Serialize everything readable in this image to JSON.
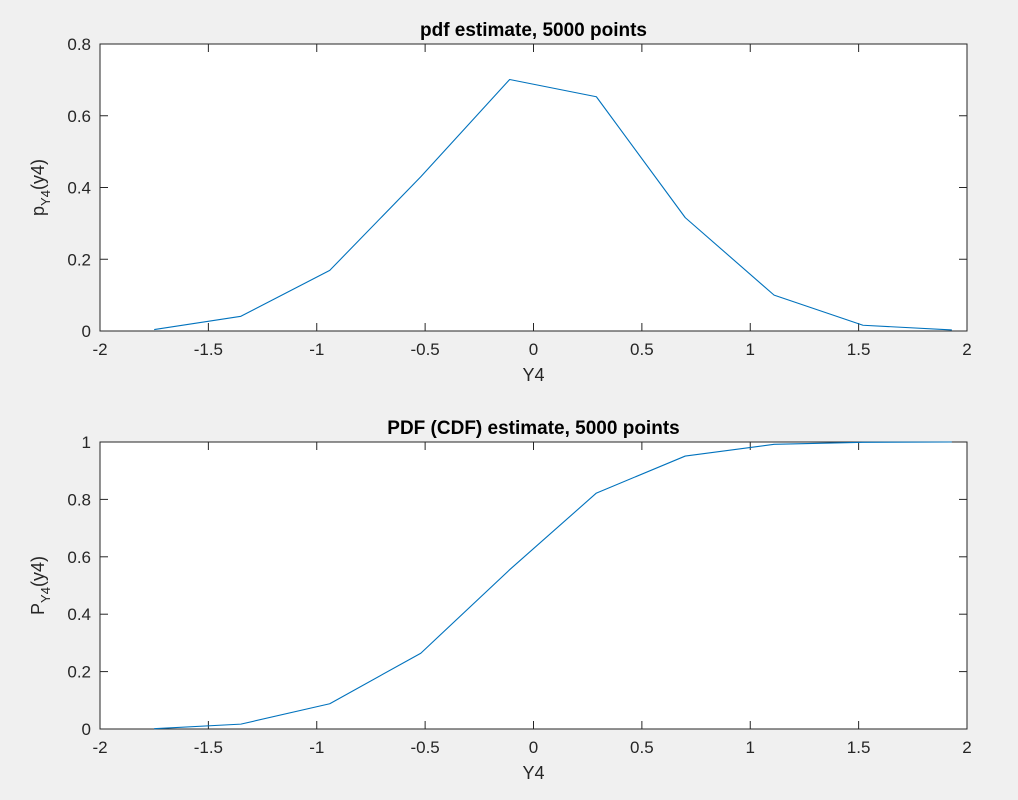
{
  "chart_data": [
    {
      "type": "line",
      "title": "pdf estimate, 5000 points",
      "xlabel": "Y4",
      "ylabel": {
        "main": "p",
        "sub": "Y4",
        "rest": "(y4)"
      },
      "xlim": [
        -2,
        2
      ],
      "ylim": [
        0,
        0.8
      ],
      "xticks": [
        -2,
        -1.5,
        -1,
        -0.5,
        0,
        0.5,
        1,
        1.5,
        2
      ],
      "xtick_labels": [
        "-2",
        "-1.5",
        "-1",
        "-0.5",
        "0",
        "0.5",
        "1",
        "1.5",
        "2"
      ],
      "yticks": [
        0,
        0.2,
        0.4,
        0.6,
        0.8
      ],
      "ytick_labels": [
        "0",
        "0.2",
        "0.4",
        "0.6",
        "0.8"
      ],
      "grid": false,
      "series": [
        {
          "color": "#0072bd",
          "x": [
            -1.75,
            -1.35,
            -0.94,
            -0.52,
            -0.11,
            0.29,
            0.7,
            1.11,
            1.52,
            1.93
          ],
          "y": [
            0.004,
            0.041,
            0.169,
            0.43,
            0.701,
            0.653,
            0.316,
            0.1,
            0.016,
            0.003
          ]
        }
      ]
    },
    {
      "type": "line",
      "title": "PDF (CDF) estimate, 5000 points",
      "xlabel": "Y4",
      "ylabel": {
        "main": "P",
        "sub": "Y4",
        "rest": "(y4)"
      },
      "xlim": [
        -2,
        2
      ],
      "ylim": [
        0,
        1
      ],
      "xticks": [
        -2,
        -1.5,
        -1,
        -0.5,
        0,
        0.5,
        1,
        1.5,
        2
      ],
      "xtick_labels": [
        "-2",
        "-1.5",
        "-1",
        "-0.5",
        "0",
        "0.5",
        "1",
        "1.5",
        "2"
      ],
      "yticks": [
        0,
        0.2,
        0.4,
        0.6,
        0.8,
        1
      ],
      "ytick_labels": [
        "0",
        "0.2",
        "0.4",
        "0.6",
        "0.8",
        "1"
      ],
      "grid": false,
      "series": [
        {
          "color": "#0072bd",
          "x": [
            -1.75,
            -1.35,
            -0.94,
            -0.52,
            -0.11,
            0.29,
            0.7,
            1.11,
            1.52,
            1.93
          ],
          "y": [
            0.001,
            0.017,
            0.088,
            0.264,
            0.555,
            0.822,
            0.951,
            0.992,
            0.999,
            1.0
          ]
        }
      ]
    }
  ]
}
